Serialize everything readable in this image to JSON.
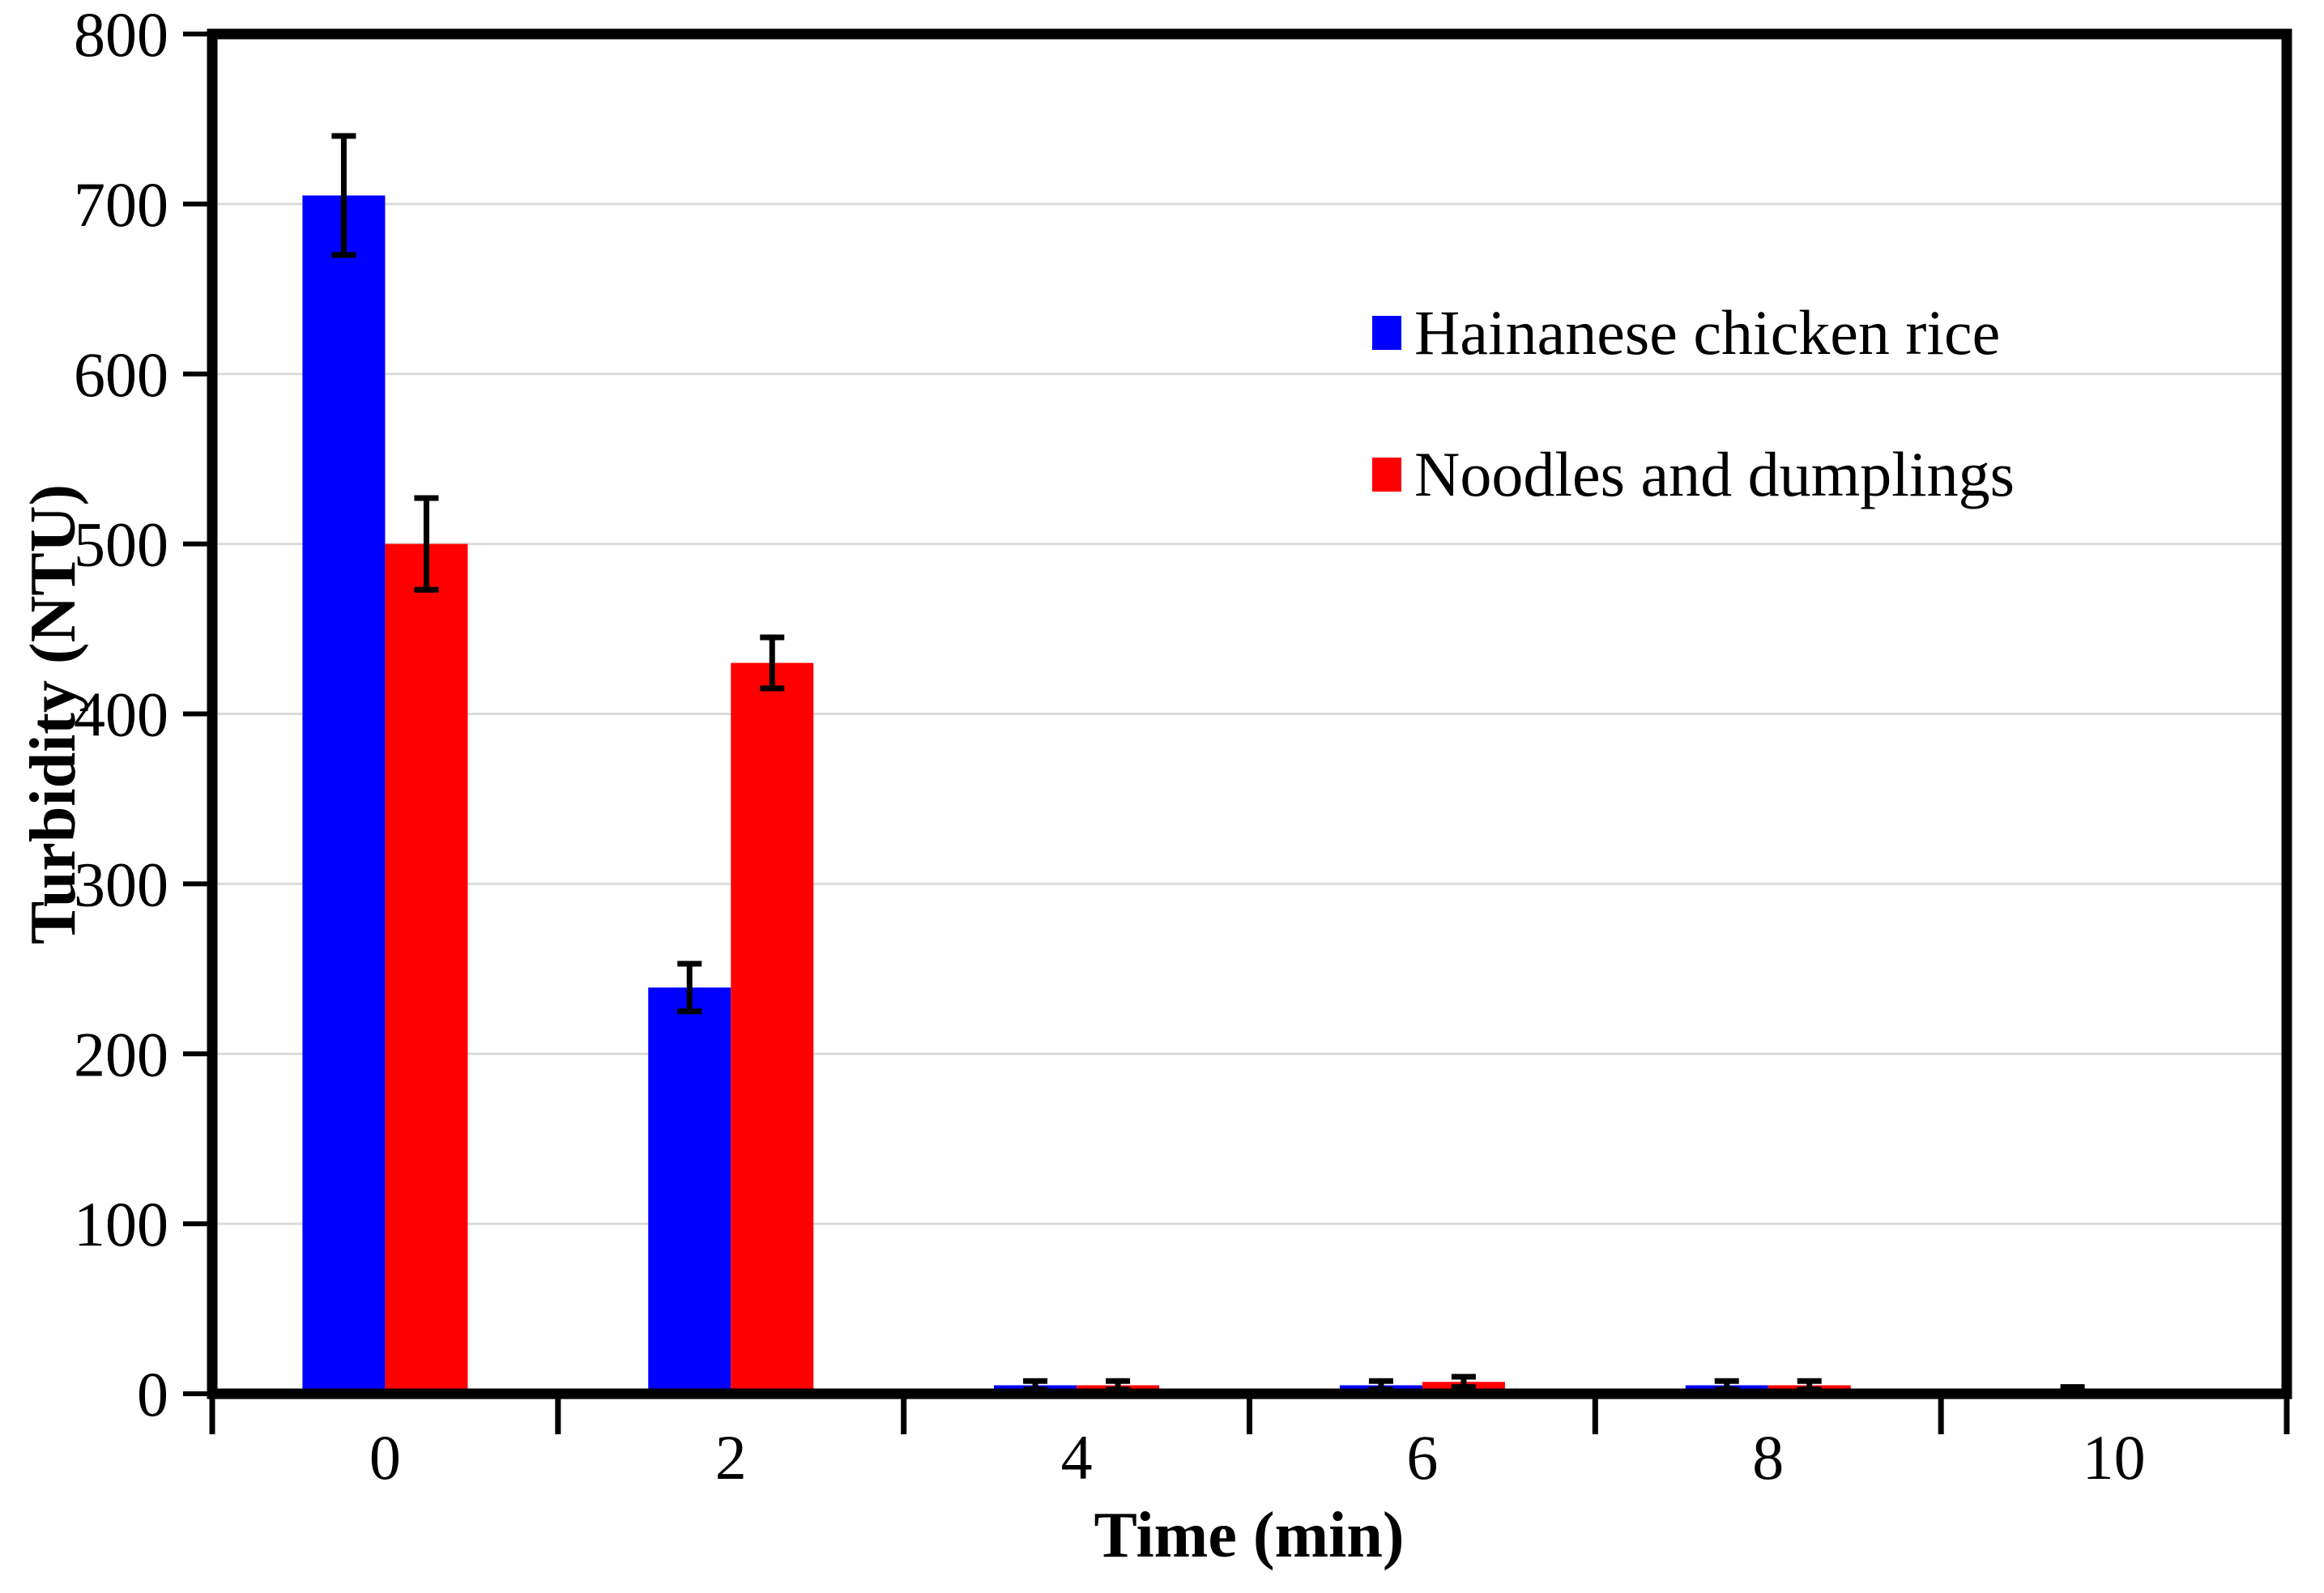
{
  "figure": {
    "background": "#FFFFFF",
    "frame_color": "#000000",
    "gridline_color": "#DBDBDB",
    "tick_color": "#000000"
  },
  "chart_data": {
    "type": "bar",
    "title": "",
    "xlabel": "Time (min)",
    "ylabel": "Turbidity (NTU)",
    "categories": [
      "0",
      "2",
      "4",
      "6",
      "8",
      "10"
    ],
    "ylim": [
      0,
      800
    ],
    "ytick_step": 100,
    "y_ticks": [
      0,
      100,
      200,
      300,
      400,
      500,
      600,
      700,
      800
    ],
    "grid": "horizontal gridlines every 100",
    "legend_position": "upper right inside plot area",
    "error_bars": true,
    "series": [
      {
        "name": "Hainanese chicken rice",
        "color": "#0000FF",
        "values": [
          705,
          239,
          5,
          5,
          5,
          2
        ],
        "errors": [
          35,
          14,
          2.5,
          2.5,
          2.5,
          2
        ]
      },
      {
        "name": "Noodles and dumplings",
        "color": "#FF0000",
        "values": [
          500,
          430,
          5,
          7,
          5,
          2
        ],
        "errors": [
          27,
          15,
          2.5,
          3,
          2.5,
          0
        ]
      }
    ]
  }
}
